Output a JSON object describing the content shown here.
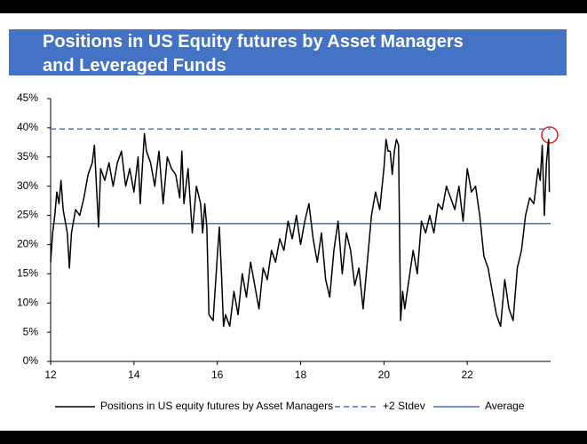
{
  "chart_data": {
    "type": "line",
    "title": "Positions in US Equity futures by Asset Managers and Leveraged Funds",
    "xlim": [
      12,
      24
    ],
    "xticks": [
      12,
      14,
      16,
      18,
      20,
      22
    ],
    "ylim": [
      0,
      45
    ],
    "yticks": [
      {
        "value": 0,
        "label": "0%"
      },
      {
        "value": 5,
        "label": "5%"
      },
      {
        "value": 10,
        "label": "10%"
      },
      {
        "value": 15,
        "label": "15%"
      },
      {
        "value": 20,
        "label": "20%"
      },
      {
        "value": 25,
        "label": "25%"
      },
      {
        "value": 30,
        "label": "30%"
      },
      {
        "value": 35,
        "label": "35%"
      },
      {
        "value": 40,
        "label": "40%"
      },
      {
        "value": 45,
        "label": "45%"
      }
    ],
    "series": [
      {
        "name": "Positions in US equity futures by Asset Managers",
        "color": "#000000",
        "x": [
          12.0,
          12.05,
          12.1,
          12.15,
          12.2,
          12.25,
          12.3,
          12.35,
          12.4,
          12.45,
          12.5,
          12.55,
          12.6,
          12.7,
          12.8,
          12.9,
          13.0,
          13.05,
          13.1,
          13.15,
          13.2,
          13.3,
          13.4,
          13.5,
          13.6,
          13.7,
          13.8,
          13.9,
          14.0,
          14.1,
          14.15,
          14.2,
          14.25,
          14.3,
          14.4,
          14.5,
          14.6,
          14.7,
          14.8,
          14.9,
          15.0,
          15.1,
          15.15,
          15.2,
          15.3,
          15.4,
          15.5,
          15.6,
          15.65,
          15.7,
          15.75,
          15.8,
          15.9,
          16.0,
          16.05,
          16.1,
          16.15,
          16.2,
          16.3,
          16.4,
          16.5,
          16.6,
          16.7,
          16.8,
          16.9,
          17.0,
          17.1,
          17.2,
          17.3,
          17.4,
          17.5,
          17.6,
          17.7,
          17.8,
          17.9,
          18.0,
          18.1,
          18.2,
          18.3,
          18.4,
          18.5,
          18.6,
          18.7,
          18.8,
          18.9,
          19.0,
          19.1,
          19.2,
          19.3,
          19.4,
          19.5,
          19.6,
          19.7,
          19.8,
          19.9,
          20.0,
          20.05,
          20.1,
          20.15,
          20.2,
          20.25,
          20.3,
          20.35,
          20.4,
          20.45,
          20.5,
          20.6,
          20.7,
          20.8,
          20.9,
          21.0,
          21.1,
          21.2,
          21.3,
          21.4,
          21.5,
          21.6,
          21.7,
          21.8,
          21.9,
          22.0,
          22.1,
          22.2,
          22.3,
          22.4,
          22.5,
          22.6,
          22.7,
          22.8,
          22.9,
          23.0,
          23.1,
          23.2,
          23.3,
          23.4,
          23.5,
          23.6,
          23.7,
          23.75,
          23.8,
          23.85,
          23.9,
          23.95,
          23.97
        ],
        "values": [
          17,
          22,
          25,
          29,
          27,
          31,
          26,
          24,
          22,
          16,
          22,
          24,
          26,
          25,
          28,
          32,
          34,
          37,
          30,
          23,
          33,
          31,
          34,
          30,
          34,
          36,
          30,
          33,
          29,
          35,
          27,
          33,
          39,
          36,
          34,
          30,
          36,
          27,
          35,
          33,
          32,
          28,
          36,
          27,
          33,
          22,
          30,
          27,
          22,
          27,
          23,
          8,
          7,
          18,
          23,
          15,
          6,
          8,
          6,
          12,
          8,
          15,
          11,
          17,
          13,
          9,
          16,
          14,
          19,
          17,
          21,
          19,
          24,
          21,
          25,
          20,
          24,
          27,
          21,
          17,
          22,
          14,
          11,
          19,
          24,
          15,
          22,
          19,
          13,
          16,
          9,
          17,
          25,
          29,
          26,
          33,
          38,
          36,
          36,
          32,
          36,
          38,
          37,
          7,
          12,
          9,
          14,
          19,
          15,
          24,
          22,
          25,
          22,
          27,
          26,
          30,
          28,
          26,
          30,
          24,
          33,
          29,
          30,
          25,
          18,
          16,
          12,
          8,
          6,
          14,
          9,
          7,
          16,
          19,
          25,
          28,
          27,
          33,
          31,
          37,
          25,
          34,
          38,
          29
        ]
      }
    ],
    "reference_lines": [
      {
        "name": "+2 Stdev",
        "value": 39.8,
        "color": "#4472c4",
        "dashed": true
      },
      {
        "name": "Average",
        "value": 23.6,
        "color": "#4472c4",
        "dashed": false
      }
    ]
  }
}
